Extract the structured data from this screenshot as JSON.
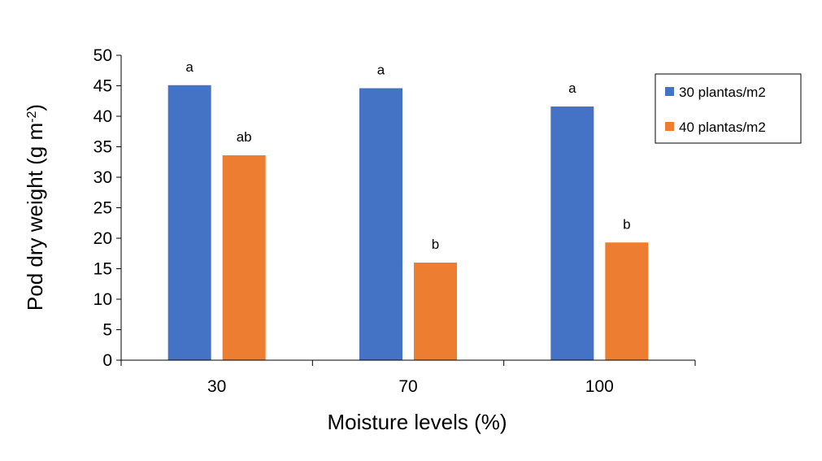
{
  "chart_data": {
    "type": "bar",
    "title": "",
    "xlabel": "Moisture levels (%)",
    "ylabel_main": "Pod dry weight (g m",
    "ylabel_sup": "-2",
    "ylabel_close": ")",
    "categories": [
      "30",
      "70",
      "100"
    ],
    "series": [
      {
        "name": "30 plantas/m2",
        "color": "#4472C4",
        "values": [
          45.1,
          44.6,
          41.6
        ],
        "labels": [
          "a",
          "a",
          "a"
        ]
      },
      {
        "name": "40 plantas/m2",
        "color": "#ED7D31",
        "values": [
          33.6,
          16.0,
          19.3
        ],
        "labels": [
          "ab",
          "b",
          "b"
        ]
      }
    ],
    "ylim": [
      0,
      50
    ],
    "yticks": [
      0,
      5,
      10,
      15,
      20,
      25,
      30,
      35,
      40,
      45,
      50
    ],
    "grid": false,
    "legend_position": "right"
  }
}
